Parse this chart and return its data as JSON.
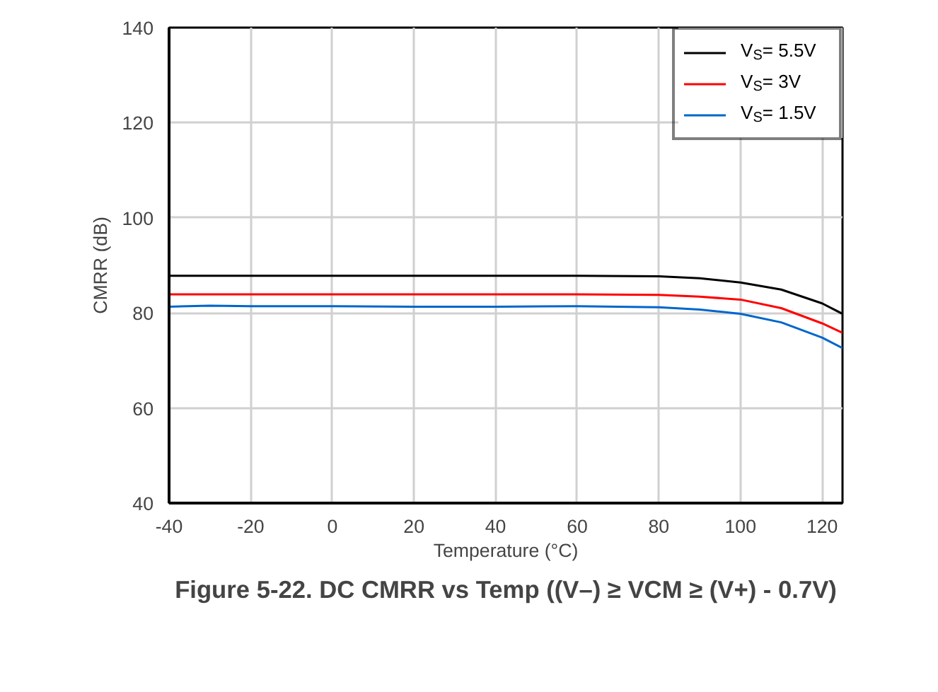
{
  "chart_data": {
    "type": "line",
    "title": "Figure 5-22. DC CMRR vs Temp ((V–) ≥ VCM ≥ (V+) - 0.7V)",
    "xlabel": "Temperature (°C)",
    "ylabel": "CMRR (dB)",
    "x": [
      -40,
      -30,
      -20,
      0,
      20,
      40,
      60,
      80,
      90,
      100,
      110,
      120,
      125
    ],
    "series": [
      {
        "name": "V$_{S}$= 5.5V",
        "color": "#000000",
        "values": [
          87.8,
          87.8,
          87.8,
          87.8,
          87.8,
          87.8,
          87.8,
          87.7,
          87.3,
          86.4,
          84.9,
          82.0,
          79.8
        ]
      },
      {
        "name": "V$_{S}$= 3V",
        "color": "#ff0000",
        "values": [
          83.9,
          83.9,
          83.9,
          83.9,
          83.9,
          83.9,
          83.9,
          83.8,
          83.4,
          82.8,
          81.0,
          77.8,
          75.8
        ]
      },
      {
        "name": "V$_{S}$= 1.5V",
        "color": "#0066cc",
        "values": [
          81.3,
          81.5,
          81.4,
          81.4,
          81.3,
          81.3,
          81.4,
          81.2,
          80.7,
          79.8,
          78.0,
          74.8,
          72.6
        ]
      }
    ],
    "xlim": [
      -40,
      125
    ],
    "ylim": [
      40,
      140
    ],
    "xticks": [
      -40,
      -20,
      0,
      20,
      40,
      60,
      80,
      100,
      120
    ],
    "yticks": [
      40,
      60,
      80,
      100,
      120,
      140
    ],
    "grid": true,
    "legend": "top right",
    "line_style": "solid",
    "marker": "none"
  }
}
